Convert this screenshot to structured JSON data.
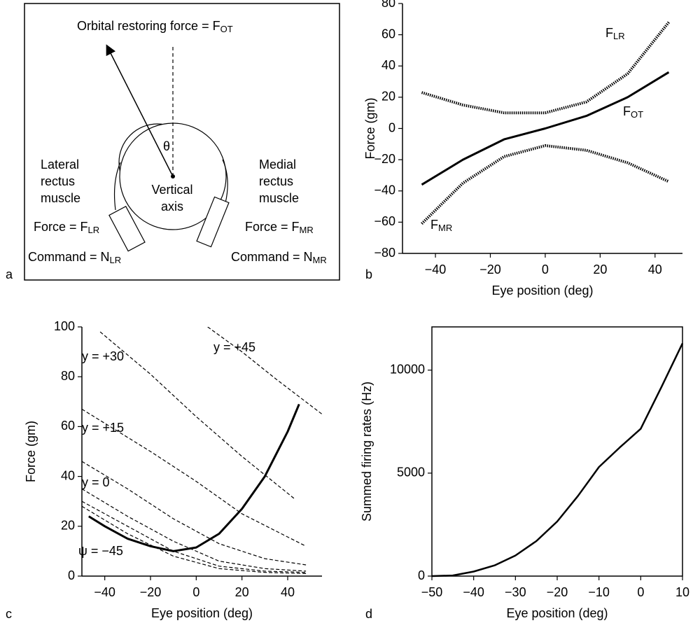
{
  "panel_labels": [
    "a",
    "b",
    "c",
    "d"
  ],
  "diagram": {
    "title": {
      "text": "Orbital restoring force = F",
      "sub": "OT"
    },
    "theta": "θ",
    "lateral": [
      "Lateral",
      "rectus",
      "muscle"
    ],
    "center": [
      "Vertical",
      "axis"
    ],
    "medial": [
      "Medial",
      "rectus",
      "muscle"
    ],
    "force_lr": {
      "text": "Force = F",
      "sub": "LR"
    },
    "force_mr": {
      "text": "Force = F",
      "sub": "MR"
    },
    "command_lr": {
      "text": "Command = N",
      "sub": "LR"
    },
    "command_mr": {
      "text": "Command = N",
      "sub": "MR"
    }
  },
  "chart_data": [
    {
      "type": "line",
      "xlabel": "Eye position (deg)",
      "ylabel": "Force (gm)",
      "xlim": [
        -52,
        50
      ],
      "ylim": [
        -80,
        80
      ],
      "xticks": [
        {
          "value": -40,
          "label": "−40"
        },
        {
          "value": -20,
          "label": "−20"
        },
        0,
        20,
        40
      ],
      "yticks": [
        {
          "value": -80,
          "label": "−80"
        },
        {
          "value": -60,
          "label": "−60"
        },
        {
          "value": -40,
          "label": "−40"
        },
        {
          "value": -20,
          "label": "−20"
        },
        0,
        20,
        40,
        60,
        80
      ],
      "series": [
        {
          "name": "F",
          "name_sub": "LR",
          "color": "#000",
          "style": "dotted",
          "x": [
            -45,
            -30,
            -15,
            0,
            15,
            30,
            45
          ],
          "values": [
            23,
            15,
            10,
            10,
            17,
            35,
            68
          ]
        },
        {
          "name": "F",
          "name_sub": "OT",
          "color": "#000",
          "style": "solid",
          "x": [
            -45,
            -30,
            -15,
            0,
            15,
            30,
            45
          ],
          "values": [
            -36,
            -20,
            -7,
            0,
            8,
            20,
            36
          ]
        },
        {
          "name": "F",
          "name_sub": "MR",
          "color": "#000",
          "style": "dotted",
          "x": [
            -45,
            -30,
            -15,
            0,
            15,
            30,
            45
          ],
          "values": [
            -61,
            -35,
            -18,
            -11,
            -14,
            -22,
            -34
          ]
        }
      ]
    },
    {
      "type": "line",
      "xlabel": "Eye position (deg)",
      "ylabel": "Force (gm)",
      "xlim": [
        -50,
        55
      ],
      "ylim": [
        0,
        100
      ],
      "xticks": [
        {
          "value": -40,
          "label": "−40"
        },
        {
          "value": -20,
          "label": "−20"
        },
        0,
        20,
        40
      ],
      "yticks": [
        0,
        20,
        40,
        60,
        80,
        100
      ],
      "annotations": [
        "y = +45",
        "y = +30",
        "y = +15",
        "y = 0",
        "ψ = −45"
      ],
      "series": [
        {
          "color": "#000",
          "style": "dashed",
          "x": [
            5,
            20,
            35,
            45,
            55
          ],
          "values": [
            100,
            90,
            79,
            72,
            65
          ]
        },
        {
          "color": "#000",
          "style": "dashed",
          "x": [
            -42,
            -20,
            0,
            20,
            43
          ],
          "values": [
            98,
            81,
            64,
            48,
            31
          ]
        },
        {
          "color": "#000",
          "style": "dashed",
          "x": [
            -50,
            -20,
            0,
            20,
            35,
            48
          ],
          "values": [
            67,
            50,
            38,
            25,
            18,
            12
          ]
        },
        {
          "color": "#000",
          "style": "dashed",
          "x": [
            -50,
            -30,
            -10,
            10,
            30,
            48
          ],
          "values": [
            46,
            35,
            23,
            13,
            7,
            4.5
          ]
        },
        {
          "color": "#000",
          "style": "dashed",
          "x": [
            -50,
            -30,
            -10,
            10,
            30,
            48
          ],
          "values": [
            35,
            24,
            14,
            6,
            3,
            2
          ]
        },
        {
          "color": "#000",
          "style": "dashed",
          "x": [
            -50,
            -30,
            -10,
            10,
            30,
            48
          ],
          "values": [
            30,
            20,
            10,
            4,
            2,
            1.5
          ]
        },
        {
          "color": "#000",
          "style": "dashed",
          "x": [
            -50,
            -30,
            -10,
            10,
            30,
            48
          ],
          "values": [
            28,
            17,
            8,
            3,
            1.5,
            1
          ]
        },
        {
          "color": "#000",
          "style": "solid",
          "x": [
            -47,
            -40,
            -30,
            -20,
            -10,
            0,
            10,
            20,
            30,
            40,
            45
          ],
          "values": [
            24,
            20,
            15,
            12,
            10,
            11.5,
            17,
            27,
            40,
            58,
            69
          ]
        }
      ]
    },
    {
      "type": "line",
      "xlabel": "Eye position (deg)",
      "ylabel": "Summed firing rates (Hz)",
      "xlim": [
        -50,
        10
      ],
      "ylim": [
        0,
        12100
      ],
      "xticks": [
        {
          "value": -50,
          "label": "−50"
        },
        {
          "value": -40,
          "label": "−40"
        },
        {
          "value": -30,
          "label": "−30"
        },
        {
          "value": -20,
          "label": "−20"
        },
        {
          "value": -10,
          "label": "−10"
        },
        0,
        10
      ],
      "yticks": [
        0,
        5000,
        10000
      ],
      "series": [
        {
          "color": "#000",
          "style": "solid",
          "x": [
            -50,
            -45,
            -40,
            -35,
            -30,
            -25,
            -20,
            -15,
            -10,
            -5,
            0,
            5,
            10
          ],
          "values": [
            0,
            30,
            220,
            520,
            1000,
            1700,
            2650,
            3900,
            5300,
            6250,
            7150,
            9200,
            11300
          ]
        }
      ]
    }
  ]
}
